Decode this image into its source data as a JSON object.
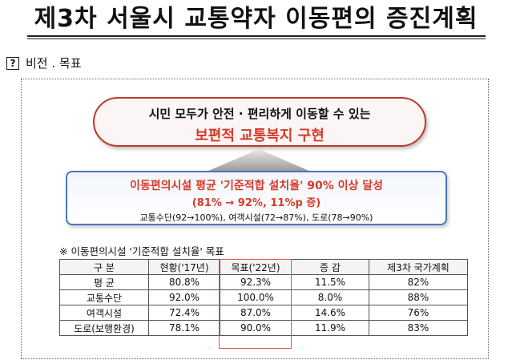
{
  "title": "제3차 서울시 교통약자 이동편의 증진계획",
  "section": {
    "marker": "?",
    "label": "비전 . 목표"
  },
  "vision": {
    "line1": "시민 모두가 안전 · 편리하게 이동할 수 있는",
    "line2": "보편적 교통복지 구현"
  },
  "goal": {
    "line1": "이동편의시설 평균 '기준적합 설치율' 90% 이상 달성",
    "line2": "(81% → 92%, 11%p 증)",
    "line3": "교통수단(92→100%), 여객시설(72→87%), 도로(78→90%)"
  },
  "table_note": "※ 이동편의시설 '기준적합 설치율' 목표",
  "table": {
    "headers": [
      "구 분",
      "현황('17년)",
      "목표('22년)",
      "증 감",
      "제3차 국가계획"
    ],
    "rows": [
      [
        "평 균",
        "80.8%",
        "92.3%",
        "11.5%",
        "82%"
      ],
      [
        "교통수단",
        "92.0%",
        "100.0%",
        "8.0%",
        "88%"
      ],
      [
        "여객시설",
        "72.4%",
        "87.0%",
        "14.6%",
        "76%"
      ],
      [
        "도로(보행환경)",
        "78.1%",
        "90.0%",
        "11.9%",
        "83%"
      ]
    ]
  },
  "colors": {
    "accent_red": "#d63a2a",
    "box_blue": "#4a77b7",
    "highlight": "#e05a4a"
  }
}
